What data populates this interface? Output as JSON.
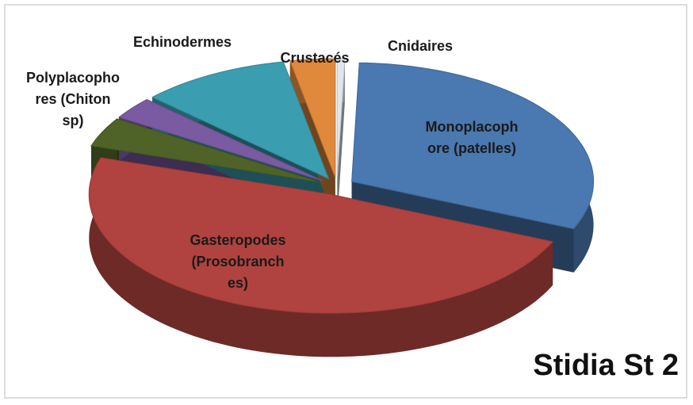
{
  "chart_data": {
    "type": "pie3d",
    "title": "Stidia St 2",
    "categories": [
      "Cnidaires",
      "Monoplacoph\nore (patelles)",
      "Gasteropodes\n(Prosobranch\nes)",
      null,
      "Polyplacopho\nres (Chiton\nsp)",
      "Echinodermes",
      "Crustacés"
    ],
    "values": [
      0.5,
      31,
      48.5,
      4,
      3,
      10,
      3
    ],
    "colors": [
      "#dfe6ee",
      "#4a78b0",
      "#b0433f",
      "#4f6228",
      "#7a5aa0",
      "#3a9db0",
      "#e0893c"
    ]
  }
}
